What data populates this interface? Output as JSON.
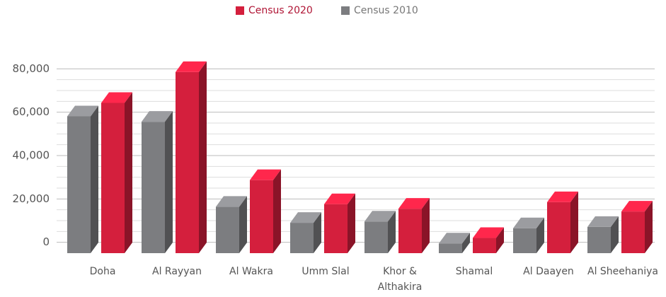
{
  "chart_data": {
    "type": "bar3d",
    "categories": [
      "Doha",
      "Al Rayyan",
      "Al Wakra",
      "Umm Slal",
      "Khor &\nAlthakira",
      "Shamal",
      "Al Daayen",
      "Al Sheehaniya"
    ],
    "series": [
      {
        "name": "Census 2020",
        "color": "#d41f3d",
        "values": [
          64300,
          78500,
          28700,
          17600,
          15500,
          2000,
          18500,
          14200
        ]
      },
      {
        "name": "Census 2010",
        "color": "#7c7d80",
        "values": [
          58100,
          55600,
          16400,
          9000,
          9600,
          -500,
          6500,
          7100
        ]
      }
    ],
    "ylim": [
      -5000,
      85000
    ],
    "yticks": [
      0,
      {
        "value": 20000,
        "label": "20,000"
      },
      {
        "value": 40000,
        "label": "40,000"
      },
      {
        "value": 60000,
        "label": "60,000"
      },
      {
        "value": 80000,
        "label": "80,000"
      }
    ],
    "grid": true
  }
}
